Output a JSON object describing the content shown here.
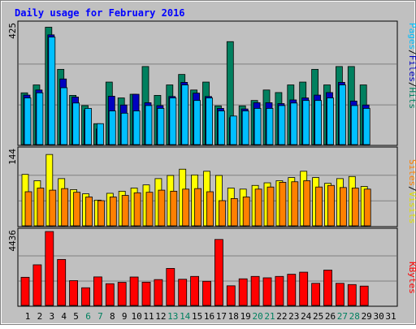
{
  "chart_data": [
    {
      "type": "bar",
      "title": "Daily usage for February 2016",
      "panel": "top",
      "y_tick_label": "425",
      "ylim": [
        0,
        425
      ],
      "series": [
        {
          "name": "Pages",
          "color": "#00bfff",
          "values": [
            165,
            183,
            380,
            201,
            147,
            128,
            74,
            119,
            111,
            119,
            138,
            128,
            165,
            211,
            156,
            165,
            119,
            101,
            119,
            128,
            128,
            138,
            147,
            156,
            156,
            165,
            211,
            138,
            128,
            0,
            0
          ]
        },
        {
          "name": "Files",
          "color": "#0000c0",
          "values": [
            175,
            193,
            388,
            232,
            168,
            122,
            55,
            171,
            140,
            178,
            148,
            138,
            170,
            220,
            182,
            170,
            128,
            95,
            126,
            148,
            148,
            145,
            158,
            165,
            175,
            184,
            220,
            154,
            140,
            0,
            0
          ]
        },
        {
          "name": "Hits",
          "color": "#00805f",
          "values": [
            183,
            211,
            415,
            266,
            174,
            138,
            74,
            221,
            165,
            178,
            276,
            174,
            211,
            248,
            193,
            221,
            137,
            364,
            137,
            156,
            193,
            184,
            211,
            221,
            266,
            211,
            276,
            276,
            211,
            0,
            0
          ]
        }
      ],
      "legend": [
        "Pages",
        "/",
        "Files",
        "/",
        "Hits"
      ]
    },
    {
      "type": "bar",
      "panel": "middle",
      "y_tick_label": "144",
      "ylim": [
        0,
        144
      ],
      "series": [
        {
          "name": "Sites",
          "color": "#ff8000",
          "values": [
            65,
            72,
            68,
            71,
            64,
            55,
            48,
            55,
            58,
            63,
            64,
            68,
            66,
            70,
            71,
            65,
            48,
            52,
            55,
            70,
            74,
            83,
            84,
            86,
            74,
            77,
            73,
            72,
            70,
            0,
            0
          ]
        },
        {
          "name": "Visits",
          "color": "#ffff00",
          "values": [
            98,
            86,
            136,
            90,
            69,
            61,
            49,
            62,
            66,
            72,
            78,
            90,
            96,
            108,
            97,
            104,
            96,
            72,
            70,
            77,
            82,
            86,
            92,
            104,
            92,
            81,
            90,
            94,
            75,
            0,
            0
          ]
        }
      ],
      "legend": [
        "Sites",
        "/",
        "Visits"
      ]
    },
    {
      "type": "bar",
      "panel": "bottom",
      "y_tick_label": "4436",
      "ylim": [
        0,
        4436
      ],
      "series": [
        {
          "name": "KBytes",
          "color": "#ff0000",
          "values": [
            1690,
            2439,
            4436,
            2760,
            1489,
            1061,
            1712,
            1305,
            1387,
            1706,
            1397,
            1552,
            2221,
            1571,
            1742,
            1450,
            3959,
            1178,
            1598,
            1742,
            1658,
            1742,
            1872,
            1996,
            1327,
            2121,
            1327,
            1253,
            1161,
            0,
            0
          ]
        }
      ],
      "legend": [
        "KBytes"
      ]
    }
  ],
  "days": [
    "1",
    "2",
    "3",
    "4",
    "5",
    "6",
    "7",
    "8",
    "9",
    "10",
    "11",
    "12",
    "13",
    "14",
    "15",
    "16",
    "17",
    "18",
    "19",
    "20",
    "21",
    "22",
    "23",
    "24",
    "25",
    "26",
    "27",
    "28",
    "29",
    "30",
    "31"
  ],
  "weekend_days": [
    6,
    7,
    13,
    14,
    20,
    21,
    27,
    28
  ],
  "colors": {
    "background": "#c0c0c0",
    "title": "#0000ff",
    "weekday_label": "#000000",
    "weekend_label": "#00805f"
  }
}
